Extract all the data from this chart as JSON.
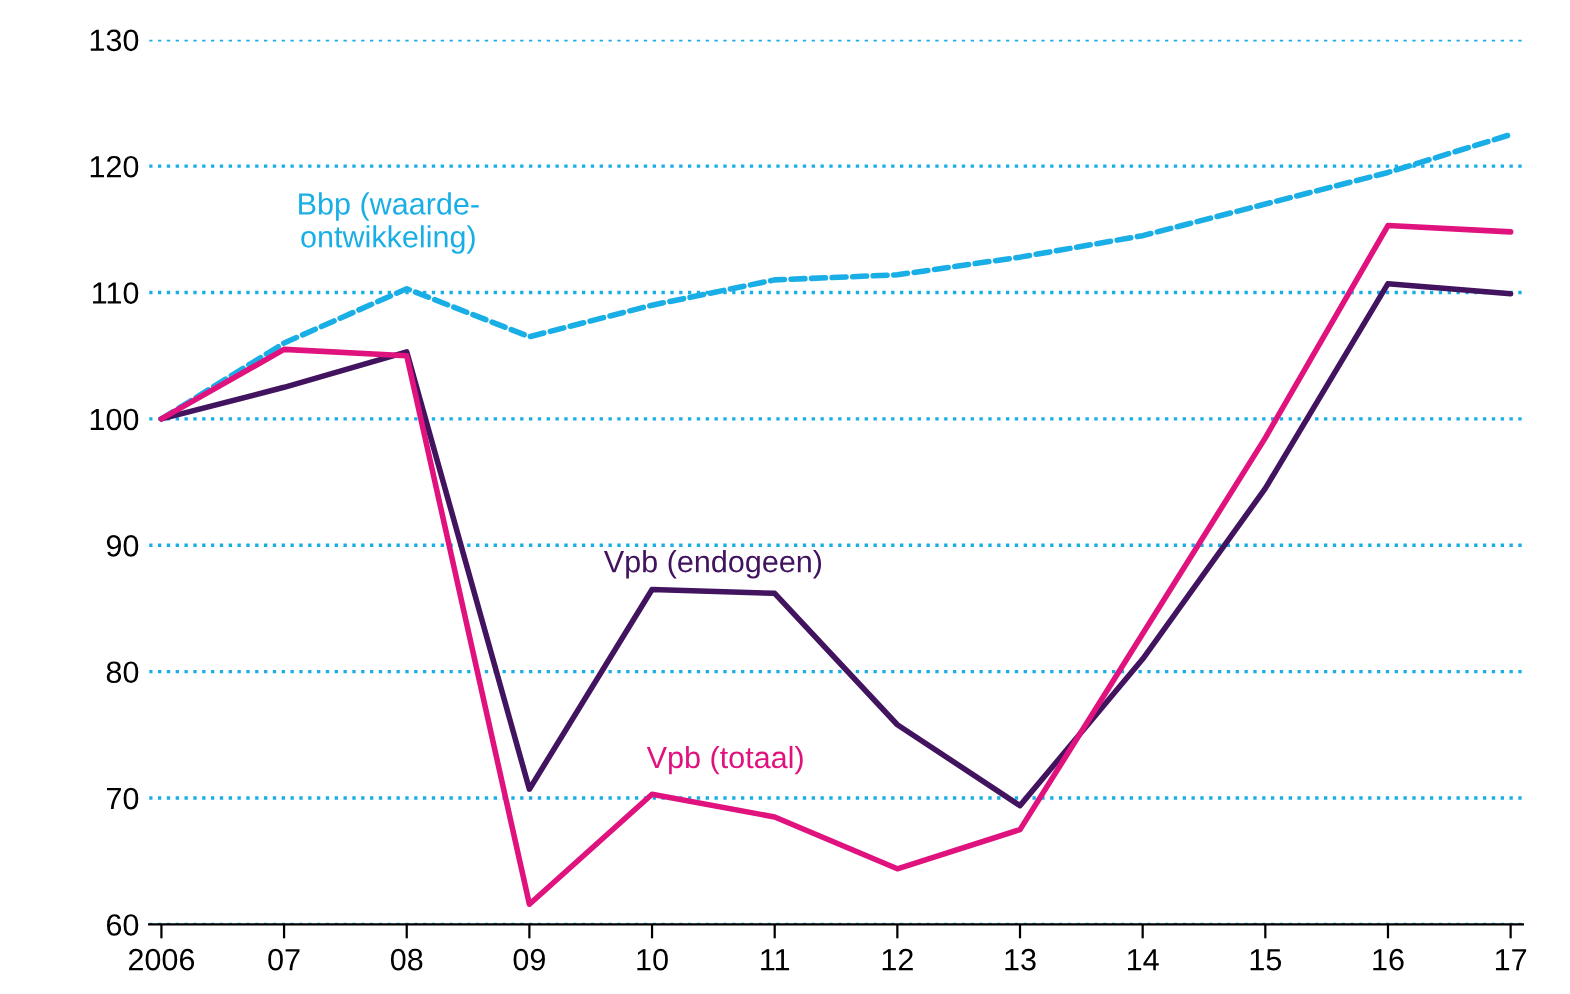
{
  "chart_data": {
    "type": "line",
    "categories": [
      "2006",
      "07",
      "08",
      "09",
      "10",
      "11",
      "12",
      "13",
      "14",
      "15",
      "16",
      "17"
    ],
    "series": [
      {
        "name": "Bbp (waarde-\nontwikkeling)",
        "color": "#1aaee6",
        "line_style": "dashed",
        "values": [
          100,
          106,
          110.3,
          106.5,
          109,
          111,
          111.4,
          112.8,
          114.5,
          117,
          119.5,
          122.5
        ]
      },
      {
        "name": "Vpb (endogeen)",
        "color": "#42145f",
        "line_style": "solid",
        "values": [
          100,
          102.5,
          105.3,
          70.7,
          86.5,
          86.2,
          75.8,
          69.4,
          81,
          94.5,
          110.7,
          109.9
        ]
      },
      {
        "name": "Vpb (totaal)",
        "color": "#e0137e",
        "line_style": "solid",
        "values": [
          100,
          105.5,
          105,
          61.6,
          70.3,
          68.5,
          64.4,
          67.5,
          83,
          98.5,
          115.3,
          114.8
        ]
      }
    ],
    "ylim": [
      60,
      130
    ],
    "yticks": [
      60,
      70,
      80,
      90,
      100,
      110,
      120,
      130
    ],
    "grid": "y",
    "legend": false,
    "marker": "none"
  }
}
